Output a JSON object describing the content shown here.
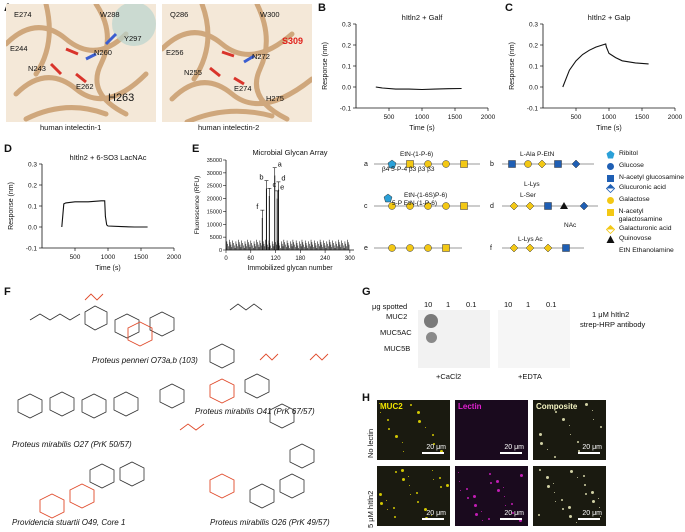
{
  "panels": {
    "A": {
      "label": "A",
      "left_caption": "human intelectin-1",
      "right_caption": "human intelectin-2",
      "left_residues": [
        "E274",
        "W288",
        "E244",
        "N260",
        "Y297",
        "N243",
        "E262",
        "H263"
      ],
      "right_residues": [
        "Q286",
        "W300",
        "E256",
        "N272",
        "S309",
        "N255",
        "E274",
        "H275"
      ],
      "highlight_color": "#e0201b"
    },
    "B": {
      "label": "B",
      "title": "hItln2 + Galf"
    },
    "C": {
      "label": "C",
      "title": "hItln2 + Galp"
    },
    "D": {
      "label": "D",
      "title": "hItln2 + 6-SO3 LacNAc"
    },
    "E": {
      "label": "E",
      "title": "Microbial Glycan Array",
      "peak_labels": [
        "a",
        "b",
        "c",
        "d",
        "e",
        "f"
      ]
    },
    "F": {
      "label": "F"
    },
    "G": {
      "label": "G",
      "header": "μg spotted",
      "amounts": [
        "10",
        "1",
        "0.1",
        "10",
        "1",
        "0.1"
      ],
      "rows": [
        "MUC2",
        "MUC5AC",
        "MUC5B"
      ],
      "conditions": [
        "+CaCl2",
        "+EDTA"
      ],
      "note_line1": "1 μM hItln2",
      "note_line2": "strep-HRP antibody"
    },
    "H": {
      "label": "H",
      "channels": [
        "MUC2",
        "Lectin",
        "Composite"
      ],
      "channel_colors": [
        "#f2e600",
        "#e020d0",
        "#f2f2c0"
      ],
      "rows": [
        "No lectin",
        "5 μM hItln2"
      ],
      "scale_bar": "20 μm"
    }
  },
  "spr_axes": {
    "ylabel": "Response (nm)",
    "xlabel": "Time (s)",
    "yticks": [
      "0.3",
      "0.2",
      "0.1",
      "0.0",
      "-0.1"
    ],
    "xticks": [
      "500",
      "1000",
      "1500",
      "2000"
    ],
    "xticks_D": [
      "500",
      "1000",
      "1500",
      "2000"
    ]
  },
  "chart_data": [
    {
      "type": "line",
      "panel": "B",
      "title": "hItln2 + Galf",
      "xlabel": "Time (s)",
      "ylabel": "Response (nm)",
      "xlim": [
        0,
        2000
      ],
      "ylim": [
        -0.1,
        0.3
      ],
      "x": [
        300,
        400,
        600,
        800,
        1000,
        1200,
        1400,
        1600
      ],
      "y": [
        0.0,
        -0.005,
        -0.01,
        -0.01,
        -0.012,
        -0.01,
        -0.008,
        -0.007
      ]
    },
    {
      "type": "line",
      "panel": "C",
      "title": "hItln2 + Galp",
      "xlabel": "Time (s)",
      "ylabel": "Response (nm)",
      "xlim": [
        0,
        2000
      ],
      "ylim": [
        -0.1,
        0.3
      ],
      "x": [
        300,
        350,
        400,
        500,
        600,
        700,
        800,
        900,
        950,
        960,
        1000,
        1100,
        1200,
        1400,
        1600
      ],
      "y": [
        0.0,
        0.04,
        0.08,
        0.125,
        0.155,
        0.175,
        0.19,
        0.2,
        0.205,
        0.19,
        0.16,
        0.14,
        0.125,
        0.115,
        0.11
      ]
    },
    {
      "type": "line",
      "panel": "D",
      "title": "hItln2 + 6-SO3 LacNAc",
      "xlabel": "Time (s)",
      "ylabel": "Response (nm)",
      "xlim": [
        0,
        2000
      ],
      "ylim": [
        -0.1,
        0.3
      ],
      "x": [
        300,
        330,
        360,
        500,
        700,
        900,
        950,
        960,
        980,
        1000,
        1200,
        1400,
        1600
      ],
      "y": [
        0.0,
        0.11,
        0.115,
        0.12,
        0.12,
        0.125,
        0.125,
        0.05,
        0.01,
        0.005,
        0.002,
        0.0,
        0.0
      ]
    },
    {
      "type": "bar",
      "panel": "E",
      "title": "Microbial Glycan Array",
      "xlabel": "Immobilized glycan number",
      "ylabel": "Fluorescence (RFU)",
      "xlim": [
        0,
        310
      ],
      "ylim": [
        0,
        35000
      ],
      "xticks": [
        0,
        60,
        120,
        180,
        240,
        300
      ],
      "yticks": [
        0,
        5000,
        10000,
        15000,
        20000,
        25000,
        30000,
        35000
      ],
      "peaks": [
        {
          "label": "a",
          "x": 118,
          "y": 29000
        },
        {
          "label": "b",
          "x": 98,
          "y": 24000
        },
        {
          "label": "c",
          "x": 105,
          "y": 21000
        },
        {
          "label": "d",
          "x": 127,
          "y": 23500
        },
        {
          "label": "e",
          "x": 124,
          "y": 20000
        },
        {
          "label": "f",
          "x": 88,
          "y": 12500
        }
      ]
    }
  ],
  "glycans_E": {
    "a": "EtN-(1-P-6)",
    "a2": "β4 5-P-4 β3 β3 β3",
    "b": "L-Ala P-EtN",
    "b2": "L-Lys",
    "c": "EtN-(1-6S)P-6)",
    "c2": "5-P EtN-(1-P-6)",
    "d": "L-Ser",
    "d2": "NAc",
    "f": "L-Lys  Ac"
  },
  "legend_E": [
    {
      "name": "Ribitol",
      "shape": "pentagon",
      "color": "#2aa0d8"
    },
    {
      "name": "Glucose",
      "shape": "circle",
      "color": "#1f5fb4"
    },
    {
      "name": "N-acetyl glucosamine",
      "shape": "square",
      "color": "#1f5fb4"
    },
    {
      "name": "Glucuronic acid",
      "shape": "diamond-split",
      "color": "#1f5fb4"
    },
    {
      "name": "Galactose",
      "shape": "circle",
      "color": "#f3c814"
    },
    {
      "name": "N-acetyl galactosamine",
      "shape": "square",
      "color": "#f3c814"
    },
    {
      "name": "Galacturonic acid",
      "shape": "diamond-split",
      "color": "#f3c814"
    },
    {
      "name": "Quinovose",
      "shape": "triangle",
      "color": "#111111"
    },
    {
      "name": "EtN Ethanolamine",
      "shape": "text",
      "color": "#111111"
    }
  ],
  "structures_F": [
    "Proteus penneri O73a,b (103)",
    "Proteus mirabilis O41 (PrK 67/57)",
    "Proteus mirabilis O27 (PrK 50/57)",
    "Providencia stuartii O49, Core 1",
    "Proteus mirabilis O26 (PrK 49/57)"
  ]
}
